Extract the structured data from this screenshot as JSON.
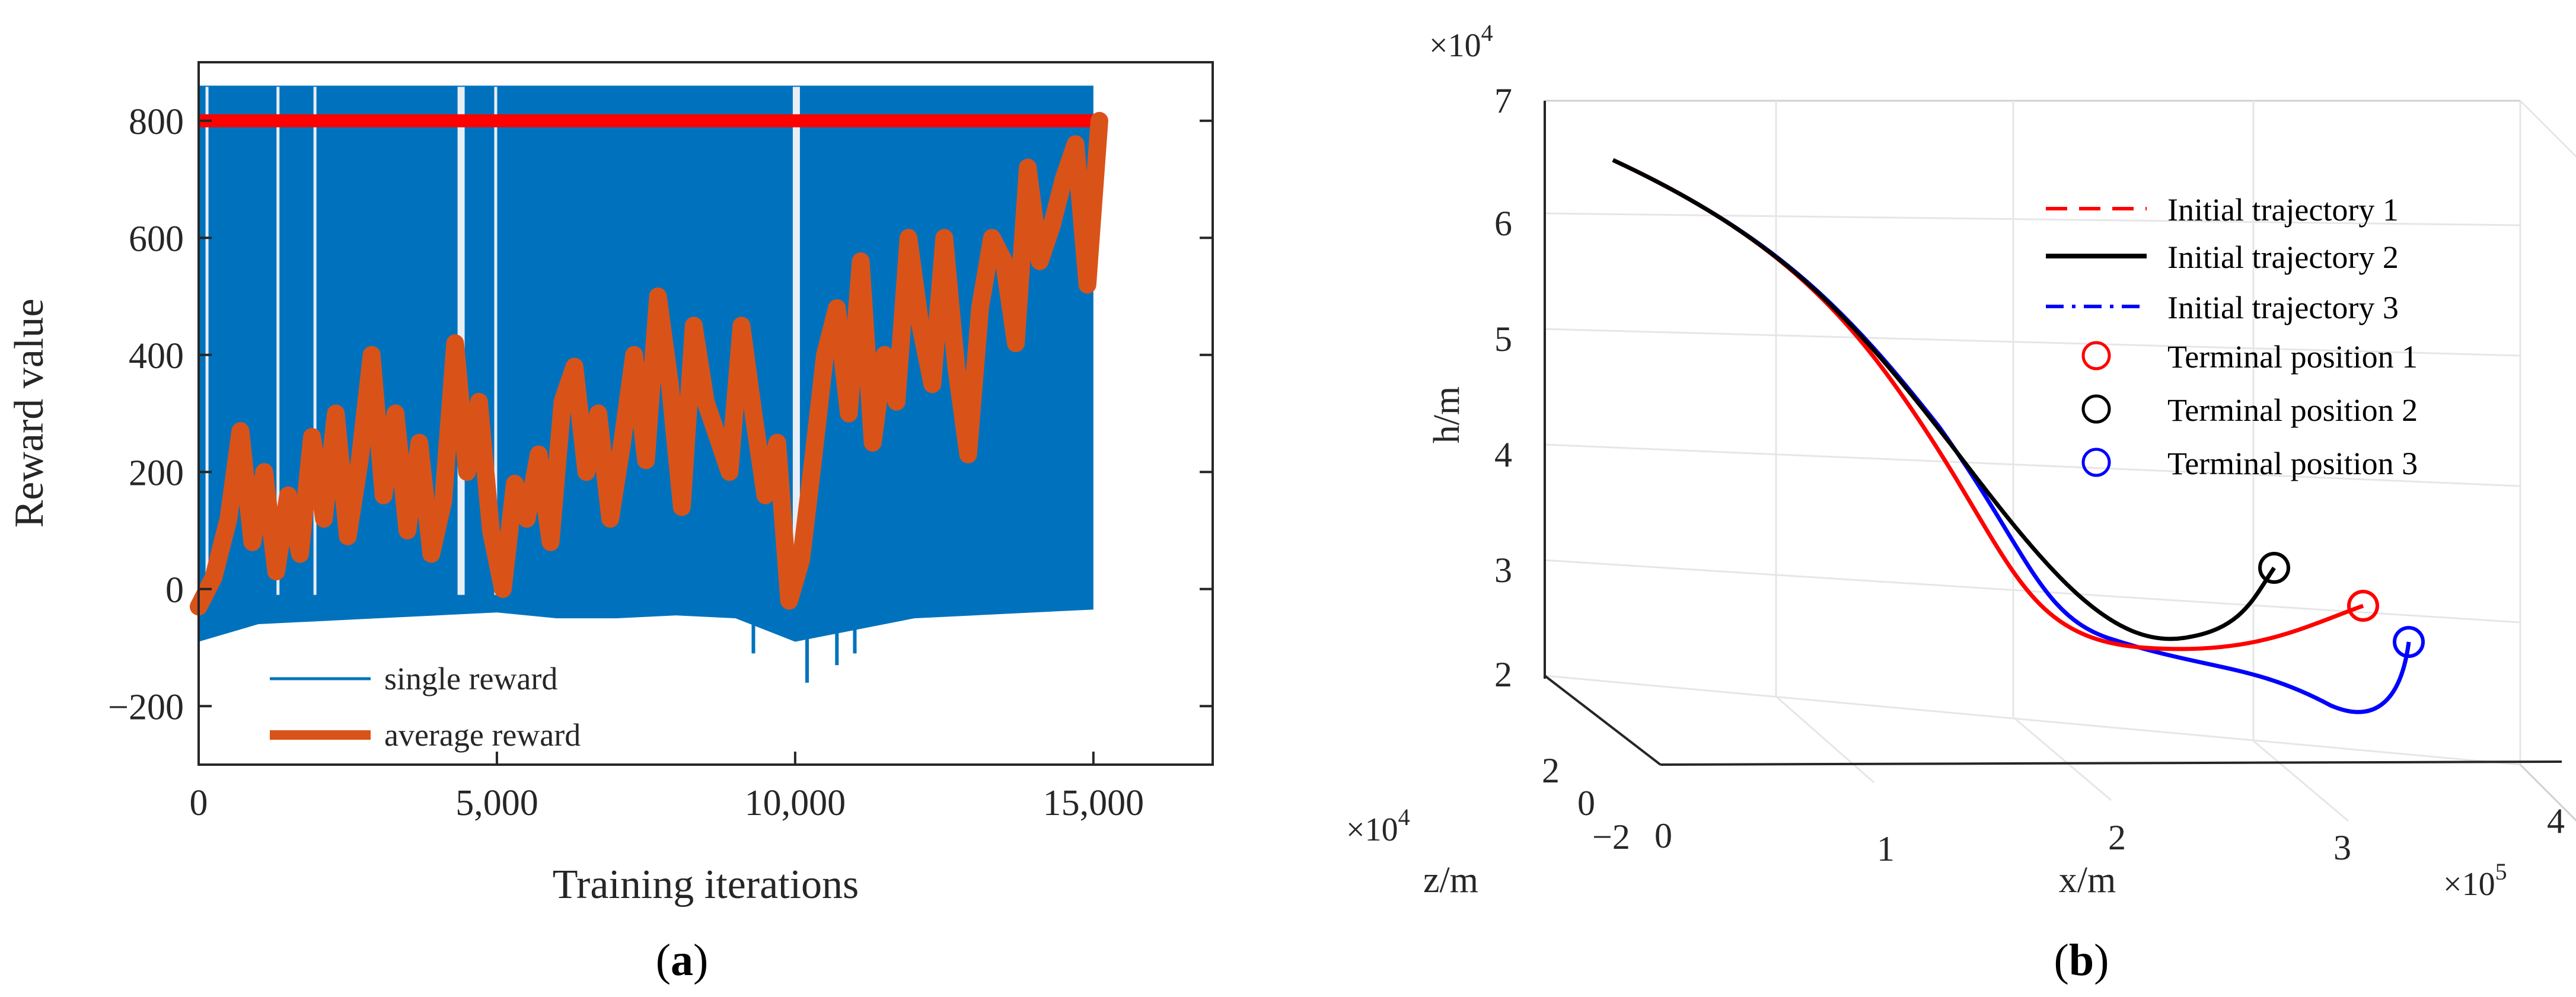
{
  "chart_data": [
    {
      "type": "line",
      "panel_label": "a",
      "xlabel": "Training iterations",
      "ylabel": "Reward value",
      "xlim": [
        0,
        17000
      ],
      "ylim": [
        -300,
        900
      ],
      "xticks": [
        0,
        5000,
        10000,
        15000
      ],
      "xtick_labels": [
        "0",
        "5,000",
        "10,000",
        "15,000"
      ],
      "yticks": [
        -200,
        0,
        200,
        400,
        600,
        800
      ],
      "ytick_labels": [
        "−200",
        "0",
        "200",
        "400",
        "600",
        "800"
      ],
      "reference_line": {
        "y": 800,
        "x_range": [
          0,
          15200
        ],
        "color": "#ff0000"
      },
      "legend": [
        "single reward",
        "average reward"
      ],
      "legend_position": "lower-left",
      "series": [
        {
          "name": "single reward",
          "color": "#0072bd",
          "band_x_range": [
            0,
            15000
          ],
          "band_upper": 860,
          "band_lower": [
            [
              0,
              -90
            ],
            [
              1000,
              -60
            ],
            [
              2000,
              -55
            ],
            [
              3000,
              -50
            ],
            [
              4000,
              -45
            ],
            [
              5000,
              -40
            ],
            [
              6000,
              -50
            ],
            [
              7000,
              -50
            ],
            [
              8000,
              -45
            ],
            [
              9000,
              -50
            ],
            [
              10000,
              -90
            ],
            [
              11000,
              -70
            ],
            [
              12000,
              -50
            ],
            [
              13000,
              -45
            ],
            [
              14000,
              -40
            ],
            [
              15000,
              -35
            ]
          ],
          "outlier_dips": [
            [
              10200,
              -160
            ],
            [
              10700,
              -130
            ],
            [
              11000,
              -110
            ],
            [
              9300,
              -110
            ]
          ],
          "gaps_x": [
            140,
            1330,
            1950,
            4400,
            4980,
            10020
          ]
        },
        {
          "name": "average reward",
          "color": "#d95319",
          "x": [
            0,
            250,
            500,
            700,
            900,
            1100,
            1300,
            1500,
            1700,
            1900,
            2100,
            2300,
            2500,
            2700,
            2900,
            3100,
            3300,
            3500,
            3700,
            3900,
            4100,
            4300,
            4500,
            4700,
            4900,
            5100,
            5300,
            5500,
            5700,
            5900,
            6100,
            6300,
            6500,
            6700,
            6900,
            7100,
            7300,
            7500,
            7700,
            7900,
            8100,
            8300,
            8500,
            8700,
            8900,
            9100,
            9300,
            9500,
            9700,
            9900,
            10100,
            10300,
            10500,
            10700,
            10900,
            11100,
            11300,
            11500,
            11700,
            11900,
            12100,
            12300,
            12500,
            12700,
            12900,
            13100,
            13300,
            13500,
            13700,
            13900,
            14100,
            14300,
            14500,
            14700,
            14900,
            15100
          ],
          "y": [
            -30,
            20,
            120,
            270,
            80,
            200,
            30,
            160,
            60,
            260,
            120,
            300,
            90,
            220,
            400,
            160,
            300,
            100,
            250,
            60,
            150,
            420,
            200,
            320,
            100,
            0,
            180,
            120,
            230,
            80,
            320,
            380,
            200,
            300,
            120,
            250,
            400,
            220,
            500,
            350,
            140,
            450,
            320,
            260,
            200,
            450,
            300,
            160,
            250,
            -20,
            50,
            220,
            400,
            480,
            300,
            560,
            250,
            400,
            320,
            600,
            450,
            350,
            600,
            380,
            230,
            480,
            600,
            560,
            420,
            720,
            560,
            620,
            700,
            760,
            520,
            800
          ]
        }
      ]
    },
    {
      "type": "line3d",
      "panel_label": "b",
      "xlabel": "x/m",
      "ylabel": "z/m",
      "zlabel": "h/m",
      "x_multiplier": "×10",
      "x_multiplier_exp": "5",
      "y_multiplier": "×10",
      "y_multiplier_exp": "4",
      "z_multiplier": "×10",
      "z_multiplier_exp": "4",
      "xticks": [
        "0",
        "1",
        "2",
        "3",
        "4"
      ],
      "yticks": [
        "−2",
        "0",
        "2"
      ],
      "zticks": [
        "2",
        "3",
        "4",
        "5",
        "6",
        "7"
      ],
      "legend_position": "top-right",
      "series": [
        {
          "name": "Initial trajectory 1",
          "color": "#ff0000",
          "style": "dashed"
        },
        {
          "name": "Initial trajectory 2",
          "color": "#000000",
          "style": "solid"
        },
        {
          "name": "Initial trajectory 3",
          "color": "#0000ff",
          "style": "dash-dot"
        }
      ],
      "markers": [
        {
          "name": "Terminal position 1",
          "color": "#ff0000"
        },
        {
          "name": "Terminal position 2",
          "color": "#000000"
        },
        {
          "name": "Terminal position 3",
          "color": "#0000ff"
        }
      ]
    }
  ]
}
